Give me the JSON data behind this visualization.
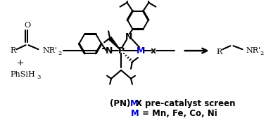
{
  "bg_color": "#ffffff",
  "arrow_color": "#000000",
  "M_color": "#0000cd",
  "figsize": [
    3.78,
    1.75
  ],
  "dpi": 100,
  "title1_black1": "(PN)",
  "title1_blue": "M",
  "title1_black2": "X pre-catalyst screen",
  "title2_blue": "M",
  "title2_black": " = Mn, Fe, Co, Ni"
}
